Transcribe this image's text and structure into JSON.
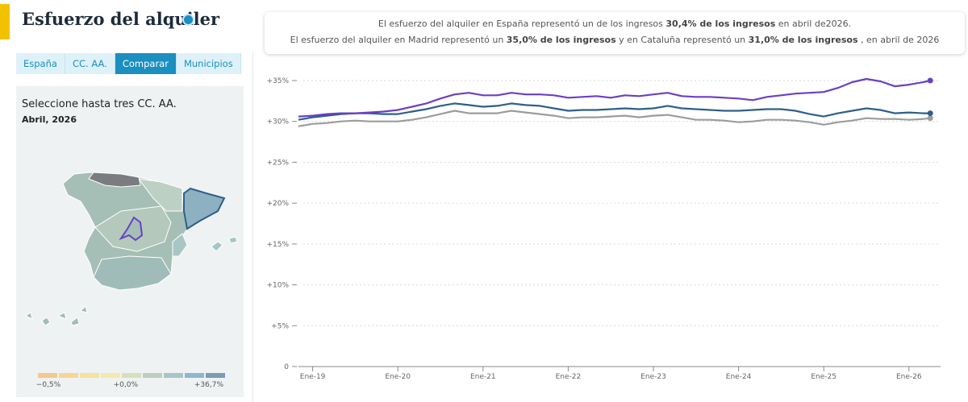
{
  "header": {
    "title": "Esfuerzo del alquiler"
  },
  "tabs": {
    "items": [
      "España",
      "CC. AA.",
      "Comparar",
      "Municipios"
    ],
    "active": 2
  },
  "panel": {
    "prompt": "Seleccione hasta tres CC. AA.",
    "date": "Abril, 2026"
  },
  "legend": {
    "colors": [
      "#f5c98c",
      "#f7d594",
      "#f8e09e",
      "#f4e9ac",
      "#d6e0bb",
      "#bccfbd",
      "#a7c5c6",
      "#8db6cf",
      "#7d9cb1"
    ],
    "labels": [
      "−0,5%",
      "+0,0%",
      "+36,7%"
    ]
  },
  "info": {
    "lines": [
      [
        {
          "text": "El esfuerzo del alquiler en España representó un de los ingresos ",
          "bold": false
        },
        {
          "text": "30,4% de los ingresos",
          "bold": true
        },
        {
          "text": " en abril de2026.",
          "bold": false
        }
      ],
      [
        {
          "text": "El esfuerzo del alquiler en Madrid representó un ",
          "bold": false
        },
        {
          "text": "35,0% de los ingresos",
          "bold": true
        },
        {
          "text": " y en Cataluña representó un ",
          "bold": false
        },
        {
          "text": "31,0% de los ingresos",
          "bold": true
        },
        {
          "text": " , en abril de 2026",
          "bold": false
        }
      ]
    ]
  },
  "chart_data": {
    "type": "line",
    "grid": true,
    "x": [
      "2018-11",
      "2019-01",
      "2019-03",
      "2019-05",
      "2019-07",
      "2019-09",
      "2019-11",
      "2020-01",
      "2020-03",
      "2020-05",
      "2020-07",
      "2020-09",
      "2020-11",
      "2021-01",
      "2021-03",
      "2021-05",
      "2021-07",
      "2021-09",
      "2021-11",
      "2022-01",
      "2022-03",
      "2022-05",
      "2022-07",
      "2022-09",
      "2022-11",
      "2023-01",
      "2023-03",
      "2023-05",
      "2023-07",
      "2023-09",
      "2023-11",
      "2024-01",
      "2024-03",
      "2024-05",
      "2024-07",
      "2024-09",
      "2024-11",
      "2025-01",
      "2025-03",
      "2025-05",
      "2025-07",
      "2025-09",
      "2025-11",
      "2026-01",
      "2026-03",
      "2026-04"
    ],
    "xlim": [
      "2018-11",
      "2026-05"
    ],
    "xticks": [
      {
        "value": "2019-01",
        "label": "Ene-19"
      },
      {
        "value": "2020-01",
        "label": "Ene-20"
      },
      {
        "value": "2021-01",
        "label": "Ene-21"
      },
      {
        "value": "2022-01",
        "label": "Ene-22"
      },
      {
        "value": "2023-01",
        "label": "Ene-23"
      },
      {
        "value": "2024-01",
        "label": "Ene-24"
      },
      {
        "value": "2025-01",
        "label": "Ene-25"
      },
      {
        "value": "2026-01",
        "label": "Ene-26"
      }
    ],
    "ylim": [
      0,
      35
    ],
    "yticks": [
      0,
      {
        "value": 5,
        "label": "+5%"
      },
      {
        "value": 10,
        "label": "+10%"
      },
      {
        "value": 15,
        "label": "+15%"
      },
      {
        "value": 20,
        "label": "+20%"
      },
      {
        "value": 25,
        "label": "+25%"
      },
      {
        "value": 30,
        "label": "+30%"
      },
      {
        "value": 35,
        "label": "+35%"
      }
    ],
    "series": [
      {
        "color": "#6a3fc6",
        "values": [
          30.6,
          30.7,
          30.9,
          31.0,
          31.0,
          31.1,
          31.2,
          31.4,
          31.8,
          32.2,
          32.8,
          33.3,
          33.5,
          33.2,
          33.2,
          33.5,
          33.3,
          33.3,
          33.2,
          32.9,
          33.0,
          33.1,
          32.9,
          33.2,
          33.1,
          33.3,
          33.5,
          33.1,
          33.0,
          33.0,
          32.9,
          32.8,
          32.6,
          33.0,
          33.2,
          33.4,
          33.5,
          33.6,
          34.1,
          34.8,
          35.2,
          34.9,
          34.3,
          34.5,
          34.8,
          35.0
        ]
      },
      {
        "color": "#2f5f88",
        "values": [
          30.2,
          30.5,
          30.7,
          30.9,
          31.0,
          31.0,
          30.9,
          30.9,
          31.2,
          31.5,
          31.9,
          32.2,
          32.0,
          31.8,
          31.9,
          32.2,
          32.0,
          31.9,
          31.6,
          31.3,
          31.4,
          31.4,
          31.5,
          31.6,
          31.5,
          31.6,
          31.9,
          31.6,
          31.5,
          31.4,
          31.3,
          31.3,
          31.4,
          31.5,
          31.5,
          31.3,
          30.9,
          30.6,
          31.0,
          31.3,
          31.6,
          31.4,
          31.0,
          31.1,
          31.0,
          31.0
        ]
      },
      {
        "color": "#9c9c9c",
        "values": [
          29.4,
          29.7,
          29.8,
          30.0,
          30.1,
          30.0,
          30.0,
          30.0,
          30.2,
          30.5,
          30.9,
          31.3,
          31.0,
          31.0,
          31.0,
          31.3,
          31.1,
          30.9,
          30.7,
          30.4,
          30.5,
          30.5,
          30.6,
          30.7,
          30.5,
          30.7,
          30.8,
          30.5,
          30.2,
          30.2,
          30.1,
          29.9,
          30.0,
          30.2,
          30.2,
          30.1,
          29.9,
          29.6,
          29.9,
          30.1,
          30.4,
          30.3,
          30.3,
          30.2,
          30.3,
          30.4
        ]
      }
    ]
  }
}
